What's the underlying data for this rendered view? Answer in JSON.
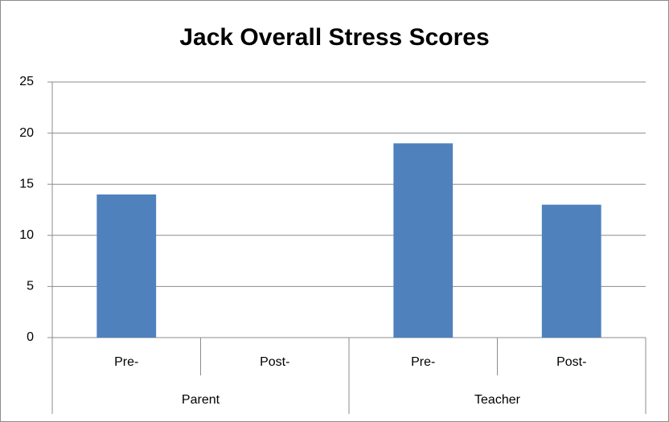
{
  "chart_data": {
    "type": "bar",
    "title": "Jack Overall Stress Scores",
    "groups": [
      {
        "name": "Parent",
        "categories": [
          "Pre-",
          "Post-"
        ],
        "values": [
          14,
          0
        ]
      },
      {
        "name": "Teacher",
        "categories": [
          "Pre-",
          "Post-"
        ],
        "values": [
          19,
          13
        ]
      }
    ],
    "color": "#4f81bd",
    "ylim": [
      0,
      25
    ],
    "yticks": [
      0,
      5,
      10,
      15,
      20,
      25
    ],
    "grid": true
  }
}
